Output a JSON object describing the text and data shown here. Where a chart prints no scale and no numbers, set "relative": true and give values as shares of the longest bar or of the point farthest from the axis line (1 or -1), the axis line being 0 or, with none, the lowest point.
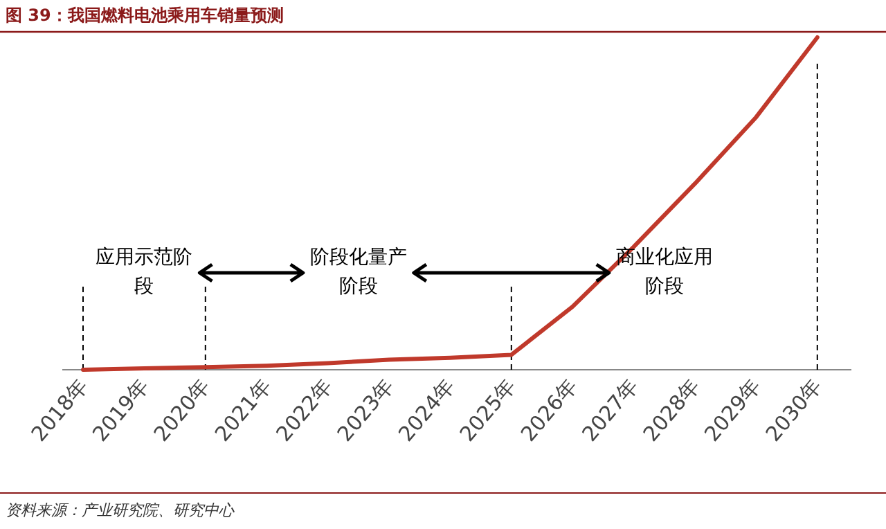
{
  "chart_data": {
    "type": "line",
    "title": "图 39：我国燃料电池乘用车销量预测",
    "relative": true,
    "color": "#c0392b",
    "categories": [
      "2018年",
      "2019年",
      "2020年",
      "2021年",
      "2022年",
      "2023年",
      "2024年",
      "2025年",
      "2026年",
      "2027年",
      "2028年",
      "2029年",
      "2030年"
    ],
    "values": [
      0,
      0.004,
      0.008,
      0.012,
      0.02,
      0.03,
      0.036,
      0.045,
      0.19,
      0.37,
      0.56,
      0.76,
      1
    ],
    "ref_lines": [
      {
        "axis": "x",
        "value": "2018年",
        "color": "#000000",
        "line_style": "dashed"
      },
      {
        "axis": "x",
        "value": "2020年",
        "color": "#000000",
        "line_style": "dashed"
      },
      {
        "axis": "x",
        "value": "2025年",
        "color": "#000000",
        "line_style": "dashed"
      },
      {
        "axis": "x",
        "value": "2030年",
        "color": "#000000",
        "line_style": "dashed"
      }
    ],
    "annotations": [
      "应用示范阶段",
      "阶段化量产阶段",
      "商业化应用阶段",
      "资料来源：产业研究院、研究中心"
    ]
  }
}
